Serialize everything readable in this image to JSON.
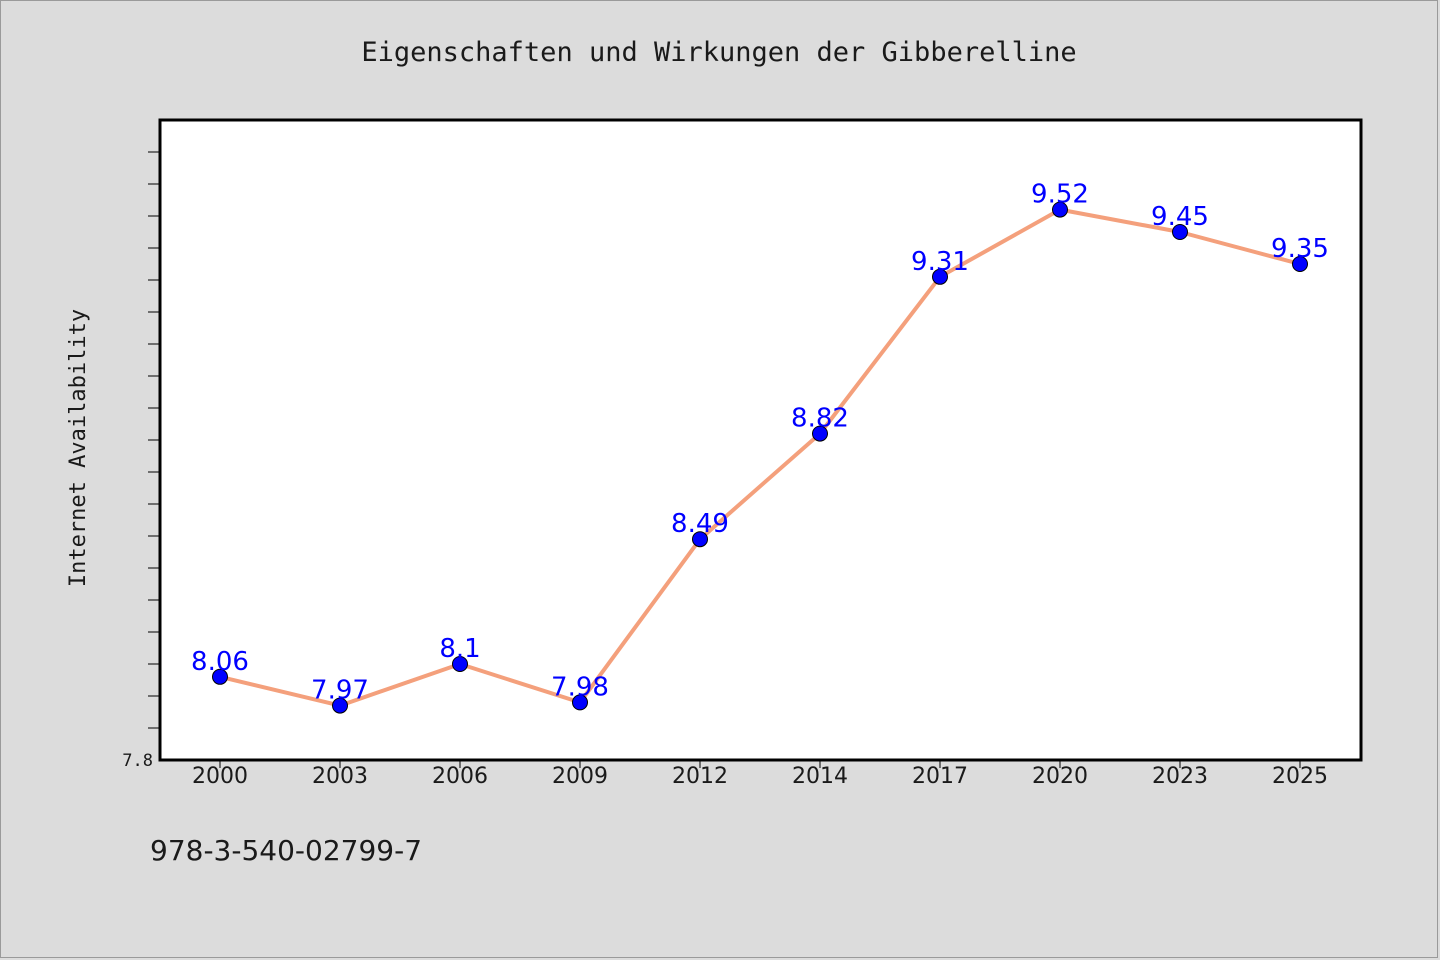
{
  "chart_data": {
    "type": "line",
    "title": "Eigenschaften und Wirkungen der Gibberelline",
    "xlabel": "",
    "ylabel": "Internet Availability",
    "categories": [
      "2000",
      "2003",
      "2006",
      "2009",
      "2012",
      "2014",
      "2017",
      "2020",
      "2023",
      "2025"
    ],
    "series": [
      {
        "values": [
          8.06,
          7.97,
          8.1,
          7.98,
          8.49,
          8.82,
          9.31,
          9.52,
          9.45,
          9.35
        ],
        "labels": [
          "8.06",
          "7.97",
          "8.1",
          "7.98",
          "8.49",
          "8.82",
          "9.31",
          "9.52",
          "9.45",
          "9.35"
        ]
      }
    ],
    "ylim": [
      7.8,
      9.8
    ],
    "y_tick_label": "7.8",
    "grid": false,
    "legend": "none",
    "colors": {
      "line": "#f4a07c",
      "marker": "#0000ff",
      "label": "#0000ff",
      "plot_bg": "#ffffff",
      "page_bg": "#dcdcdc"
    }
  },
  "footer": {
    "isbn": "978-3-540-02799-7"
  }
}
